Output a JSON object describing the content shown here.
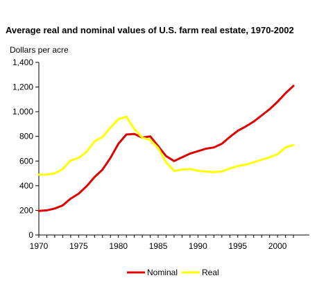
{
  "chart_data": {
    "type": "line",
    "title": "Average real and nominal values of U.S. farm real estate, 1970-2002",
    "ylabel": "Dollars per acre",
    "xlabel": "",
    "xlim": [
      1970,
      2004
    ],
    "ylim": [
      0,
      1400
    ],
    "x_ticks": [
      1970,
      1975,
      1980,
      1985,
      1990,
      1995,
      2000
    ],
    "y_ticks": [
      0,
      200,
      400,
      600,
      800,
      1000,
      1200,
      1400
    ],
    "y_tick_labels": [
      "0",
      "200",
      "400",
      "600",
      "800",
      "1,000",
      "1,200",
      "1,400"
    ],
    "grid": false,
    "legend_position": "bottom",
    "x": [
      1970,
      1971,
      1972,
      1973,
      1974,
      1975,
      1976,
      1977,
      1978,
      1979,
      1980,
      1981,
      1982,
      1983,
      1984,
      1985,
      1986,
      1987,
      1988,
      1989,
      1990,
      1991,
      1992,
      1993,
      1994,
      1995,
      1996,
      1997,
      1998,
      1999,
      2000,
      2001,
      2002
    ],
    "series": [
      {
        "name": "Nominal",
        "color": "#e00000",
        "values": [
          195,
          200,
          215,
          240,
          295,
          335,
          395,
          470,
          530,
          625,
          740,
          815,
          820,
          790,
          800,
          720,
          640,
          600,
          630,
          660,
          680,
          700,
          710,
          740,
          795,
          845,
          880,
          920,
          970,
          1020,
          1080,
          1150,
          1210
        ]
      },
      {
        "name": "Real",
        "color": "#ffff00",
        "values": [
          490,
          490,
          500,
          535,
          605,
          625,
          675,
          760,
          795,
          870,
          940,
          960,
          860,
          790,
          770,
          705,
          590,
          520,
          530,
          535,
          520,
          515,
          510,
          515,
          540,
          560,
          570,
          590,
          610,
          630,
          655,
          710,
          730
        ]
      }
    ]
  }
}
